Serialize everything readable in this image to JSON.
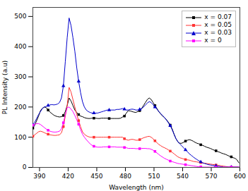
{
  "chart_data": {
    "type": "line",
    "xlabel": "Wavelength (nm)",
    "ylabel": "PL Intensity (a.u)",
    "xlim": [
      383,
      600
    ],
    "ylim": [
      0,
      530
    ],
    "xticks": [
      390,
      420,
      450,
      480,
      510,
      540,
      570,
      600
    ],
    "yticks": [
      0,
      100,
      200,
      300,
      400,
      500
    ],
    "legend": "upper right",
    "x": [
      383,
      385,
      387,
      389,
      391,
      393,
      395,
      397,
      399,
      401,
      403,
      405,
      407,
      409,
      411,
      413,
      415,
      417,
      419,
      421,
      423,
      425,
      427,
      429,
      431,
      433,
      435,
      437,
      439,
      441,
      443,
      445,
      447,
      449,
      451,
      453,
      455,
      457,
      459,
      461,
      463,
      465,
      467,
      469,
      471,
      473,
      475,
      477,
      479,
      481,
      483,
      485,
      487,
      489,
      491,
      493,
      495,
      497,
      499,
      501,
      503,
      505,
      507,
      509,
      511,
      513,
      515,
      517,
      519,
      521,
      523,
      525,
      527,
      529,
      531,
      533,
      535,
      537,
      539,
      541,
      543,
      545,
      547,
      549,
      551,
      553,
      555,
      557,
      559,
      561,
      563,
      565,
      567,
      569,
      571,
      573,
      575,
      577,
      579,
      581,
      583,
      585,
      587,
      589,
      591,
      593,
      595,
      597,
      599
    ],
    "series": [
      {
        "name": "x = 0.07",
        "color": "#000000",
        "marker": "square",
        "values": [
          130,
          140,
          155,
          170,
          188,
          196,
          200,
          198,
          190,
          183,
          178,
          173,
          170,
          168,
          167,
          168,
          172,
          185,
          205,
          230,
          220,
          205,
          190,
          182,
          175,
          170,
          168,
          165,
          163,
          162,
          162,
          163,
          163,
          163,
          162,
          162,
          163,
          163,
          163,
          163,
          162,
          162,
          162,
          162,
          162,
          162,
          163,
          167,
          170,
          180,
          188,
          187,
          185,
          183,
          182,
          185,
          188,
          195,
          205,
          215,
          225,
          230,
          225,
          215,
          205,
          195,
          185,
          177,
          170,
          165,
          158,
          150,
          140,
          128,
          110,
          95,
          85,
          80,
          80,
          83,
          87,
          90,
          92,
          90,
          87,
          83,
          80,
          78,
          75,
          73,
          70,
          67,
          65,
          63,
          60,
          57,
          55,
          52,
          50,
          47,
          45,
          43,
          40,
          37,
          35,
          32,
          30,
          25,
          15
        ]
      },
      {
        "name": "x = 0.05",
        "color": "#ff3333",
        "marker": "square",
        "values": [
          103,
          108,
          113,
          118,
          120,
          118,
          115,
          112,
          110,
          108,
          107,
          106,
          106,
          107,
          108,
          115,
          135,
          170,
          205,
          265,
          250,
          225,
          200,
          175,
          155,
          135,
          118,
          110,
          105,
          102,
          100,
          100,
          100,
          100,
          100,
          100,
          100,
          100,
          100,
          100,
          100,
          100,
          100,
          100,
          100,
          100,
          100,
          100,
          95,
          92,
          90,
          92,
          93,
          92,
          90,
          90,
          92,
          95,
          98,
          100,
          102,
          103,
          100,
          95,
          88,
          82,
          76,
          72,
          68,
          65,
          62,
          58,
          54,
          50,
          45,
          40,
          35,
          32,
          30,
          28,
          26,
          25,
          24,
          22,
          20,
          19,
          18,
          17,
          16,
          15,
          14,
          13,
          12,
          11,
          10,
          9,
          8,
          7,
          6,
          5,
          4,
          3,
          2,
          1,
          1,
          1,
          1,
          1,
          1
        ]
      },
      {
        "name": "x = 0.03",
        "color": "#0000cc",
        "marker": "triangle",
        "values": [
          140,
          150,
          162,
          175,
          185,
          195,
          200,
          202,
          205,
          207,
          208,
          207,
          208,
          210,
          215,
          230,
          270,
          350,
          430,
          495,
          470,
          430,
          385,
          330,
          285,
          248,
          218,
          200,
          190,
          185,
          182,
          180,
          180,
          180,
          180,
          182,
          184,
          186,
          188,
          190,
          190,
          190,
          190,
          190,
          192,
          192,
          193,
          195,
          193,
          190,
          190,
          192,
          193,
          192,
          190,
          190,
          192,
          195,
          200,
          207,
          213,
          218,
          215,
          208,
          200,
          193,
          185,
          178,
          172,
          165,
          157,
          148,
          138,
          125,
          110,
          95,
          85,
          78,
          72,
          65,
          58,
          52,
          45,
          40,
          35,
          30,
          26,
          22,
          18,
          15,
          13,
          11,
          9,
          8,
          7,
          6,
          5,
          4,
          3,
          2,
          1,
          1,
          1,
          1,
          1,
          1,
          1,
          1,
          1
        ]
      },
      {
        "name": "x = 0",
        "color": "#ff00ff",
        "marker": "square",
        "values": [
          140,
          143,
          145,
          145,
          142,
          137,
          132,
          127,
          123,
          120,
          118,
          117,
          117,
          118,
          120,
          128,
          148,
          175,
          198,
          200,
          193,
          185,
          172,
          158,
          143,
          125,
          110,
          100,
          92,
          85,
          78,
          73,
          70,
          68,
          67,
          67,
          67,
          68,
          68,
          68,
          68,
          68,
          68,
          68,
          67,
          67,
          67,
          67,
          66,
          65,
          63,
          63,
          63,
          63,
          62,
          62,
          62,
          63,
          63,
          63,
          62,
          62,
          60,
          57,
          53,
          48,
          43,
          38,
          34,
          30,
          27,
          24,
          21,
          19,
          17,
          15,
          13,
          12,
          11,
          10,
          9,
          8,
          7,
          6,
          5,
          4,
          3,
          2,
          2,
          1,
          1,
          1,
          1,
          1,
          1,
          1,
          1,
          1,
          1,
          1,
          1,
          1,
          1,
          1,
          1,
          1,
          1,
          1,
          1
        ]
      }
    ]
  }
}
